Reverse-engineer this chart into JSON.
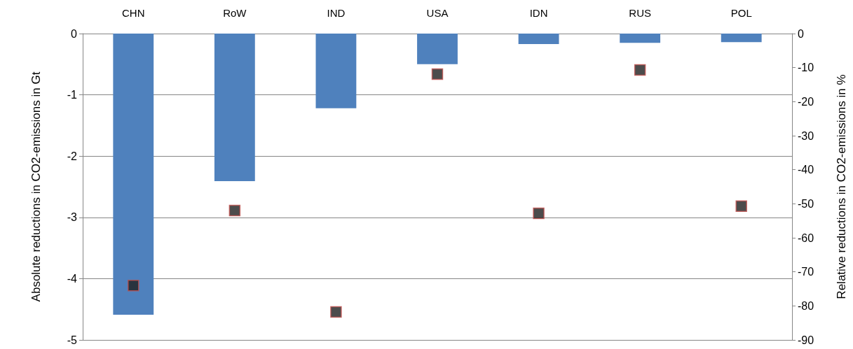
{
  "chart_data": {
    "type": "bar",
    "categories": [
      "CHN",
      "RoW",
      "IND",
      "USA",
      "IDN",
      "RUS",
      "POL"
    ],
    "ylabel": "Absolute reductions in CO2-emissions in Gt",
    "y2label": "Relative reductions in CO2-emissions in %",
    "ylim": [
      -5,
      0
    ],
    "yticks": [
      -5,
      -4,
      -3,
      -2,
      -1,
      0
    ],
    "y2lim": [
      -90,
      0
    ],
    "y2ticks": [
      -90,
      -80,
      -70,
      -60,
      -50,
      -40,
      -30,
      -20,
      -10,
      0
    ],
    "grid": "y",
    "marker": "square",
    "series": [
      {
        "color": "#4f81bd",
        "values": [
          -4.59,
          -2.41,
          -1.22,
          -0.5,
          -0.17,
          -0.15,
          -0.14
        ]
      },
      {
        "type": "scatter",
        "axis": "y2",
        "color": "#1f1f1f",
        "x": [
          "CHN",
          "RoW",
          "IND",
          "USA",
          "IDN",
          "RUS",
          "POL"
        ],
        "values": [
          -74,
          -52,
          -81.8,
          -11.9,
          -52.8,
          -10.7,
          -50.7
        ]
      }
    ]
  }
}
